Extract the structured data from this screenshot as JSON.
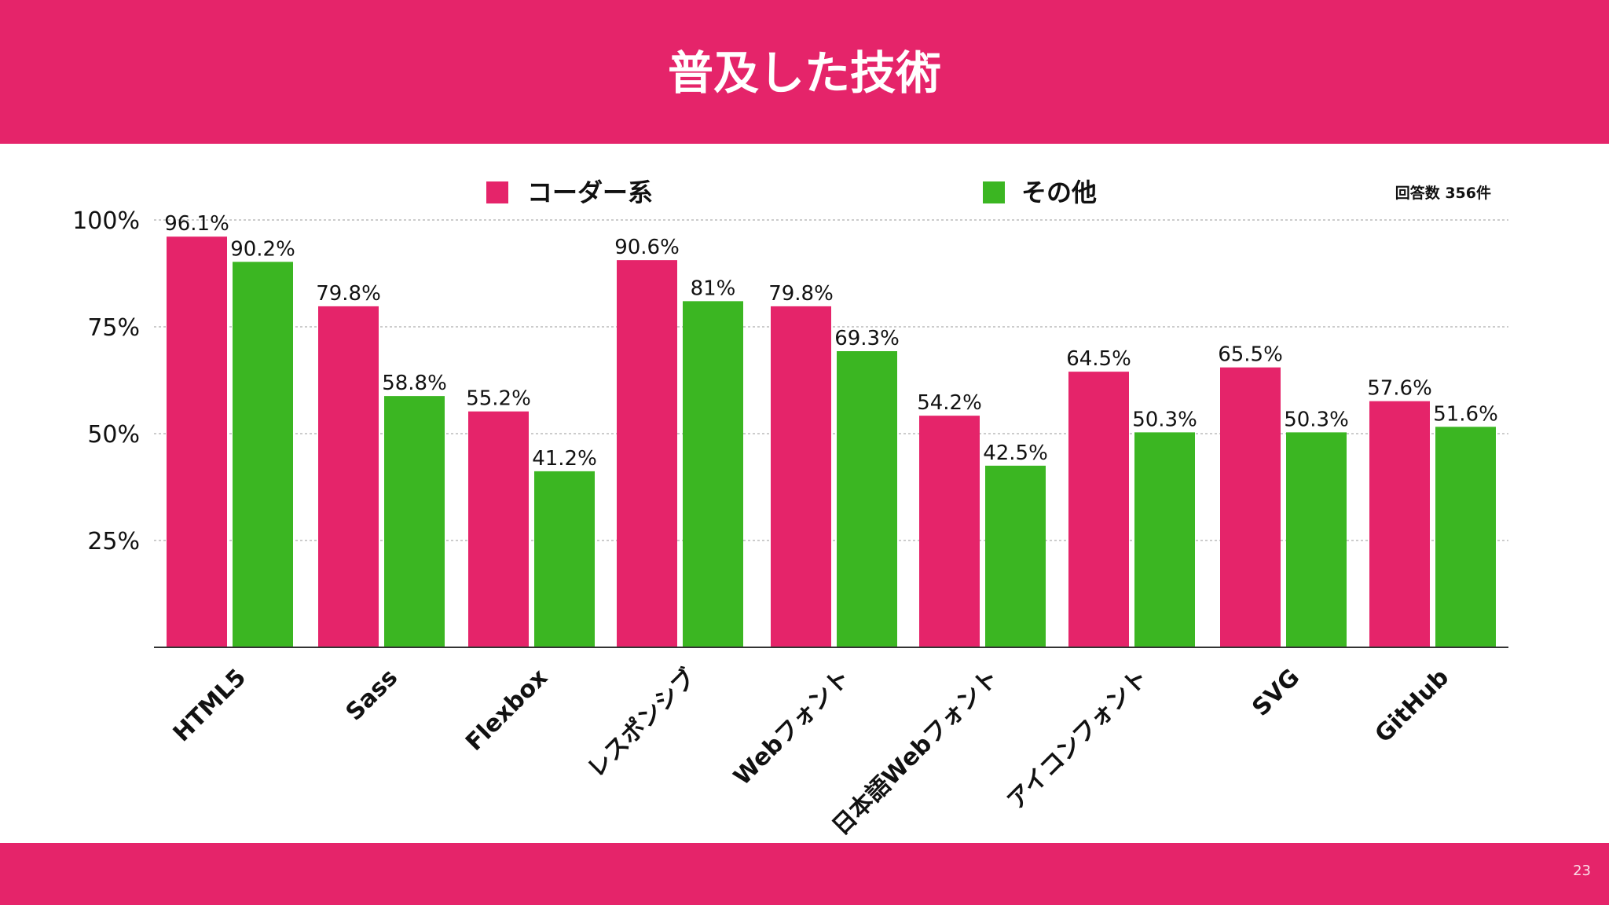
{
  "slide": {
    "title": "普及した技術",
    "page_number": "23",
    "header_color": "#e5246a"
  },
  "chart_data": {
    "type": "bar",
    "title": "",
    "xlabel": "",
    "ylabel": "",
    "ylim": [
      0,
      100
    ],
    "yticks": [
      25,
      50,
      75,
      100
    ],
    "ytick_labels": [
      "25%",
      "50%",
      "75%",
      "100%"
    ],
    "grid": true,
    "legend_position": "top",
    "note": "回答数 356件",
    "categories": [
      "HTML5",
      "Sass",
      "Flexbox",
      "レスポンシブ",
      "Webフォント",
      "日本語Webフォント",
      "アイコンフォント",
      "SVG",
      "GitHub"
    ],
    "series": [
      {
        "name": "コーダー系",
        "color": "#e5246a",
        "values": [
          96.1,
          79.8,
          55.2,
          90.6,
          79.8,
          54.2,
          64.5,
          65.5,
          57.6
        ],
        "labels": [
          "96.1%",
          "79.8%",
          "55.2%",
          "90.6%",
          "79.8%",
          "54.2%",
          "64.5%",
          "65.5%",
          "57.6%"
        ]
      },
      {
        "name": "その他",
        "color": "#3bb622",
        "values": [
          90.2,
          58.8,
          41.2,
          81,
          69.3,
          42.5,
          50.3,
          50.3,
          51.6
        ],
        "labels": [
          "90.2%",
          "58.8%",
          "41.2%",
          "81%",
          "69.3%",
          "42.5%",
          "50.3%",
          "50.3%",
          "51.6%"
        ]
      }
    ]
  }
}
